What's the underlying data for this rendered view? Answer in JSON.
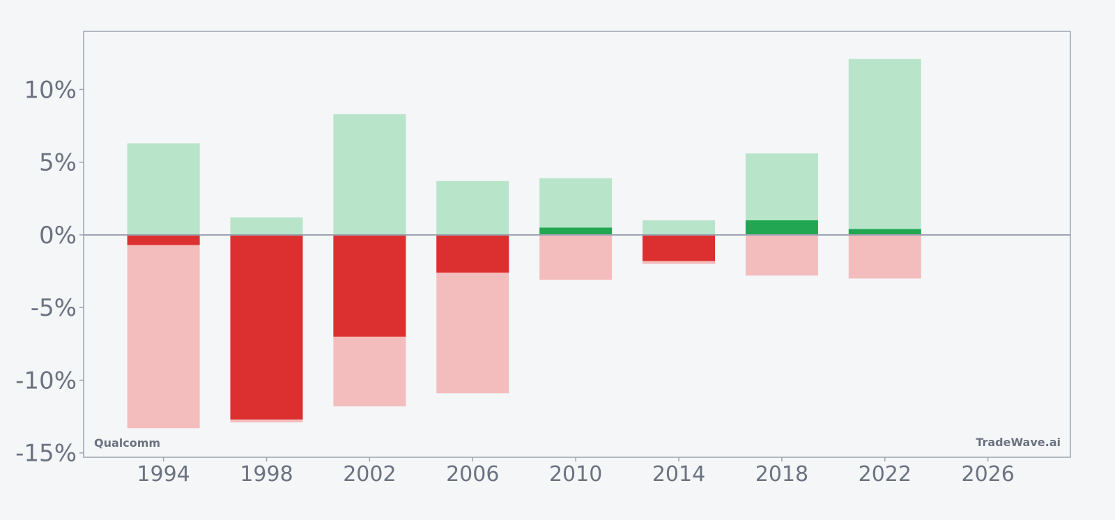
{
  "chart_data": {
    "type": "bar",
    "title": "",
    "xlabel": "",
    "ylabel": "",
    "x": [
      1994,
      1998,
      2002,
      2006,
      2010,
      2014,
      2018,
      2022
    ],
    "xlim": [
      1990.9,
      2029.2
    ],
    "ylim": [
      -15.3,
      14
    ],
    "x_ticks": [
      1994,
      1998,
      2002,
      2006,
      2010,
      2014,
      2018,
      2022,
      2026
    ],
    "x_tick_labels": [
      "1994",
      "1998",
      "2002",
      "2006",
      "2010",
      "2014",
      "2018",
      "2022",
      "2026"
    ],
    "y_ticks": [
      10,
      5,
      0,
      -5,
      -10,
      -15
    ],
    "y_tick_labels": [
      "10%",
      "5%",
      "0%",
      "-5%",
      "-10%",
      "-15%"
    ],
    "series": [
      {
        "values": [
          6.3,
          1.2,
          8.3,
          3.7,
          3.9,
          1.0,
          5.6,
          12.1
        ]
      },
      {
        "values": [
          -13.3,
          -12.9,
          -11.8,
          -10.9,
          -3.1,
          -2.0,
          -2.8,
          -3.0
        ]
      },
      {
        "values": [
          -0.7,
          -12.7,
          -7.0,
          -2.6,
          0.5,
          -1.8,
          1.0,
          0.4
        ]
      }
    ],
    "colors": {
      "range_up": "#b8e4c9",
      "range_down": "#f4bdbd",
      "value_positive": "#22a652",
      "value_negative": "#dc3030",
      "zero_line": "#9ca3af",
      "frame": "#9ca3af",
      "tick_text": "#6b7280",
      "background": "#f4f6f8"
    },
    "grid": false,
    "legend": "none"
  },
  "labels": {
    "bottom_left": "Qualcomm",
    "bottom_right": "TradeWave.ai"
  }
}
